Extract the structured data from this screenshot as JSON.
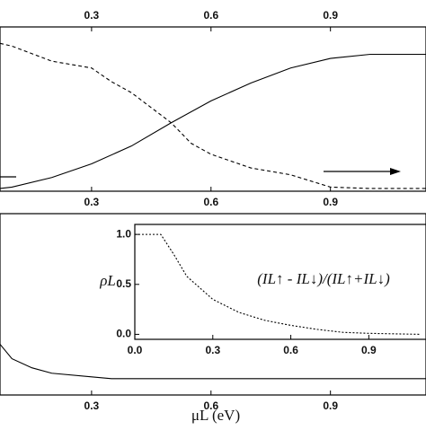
{
  "chart_data": [
    {
      "type": "line",
      "xlim": [
        0.07,
        1.14
      ],
      "xticks": [
        0.3,
        0.6,
        0.9
      ],
      "ylim": [
        0,
        1.2
      ],
      "ticks_top": true,
      "series": [
        {
          "color": "#000000",
          "style": "solid",
          "x": [
            0.07,
            0.1,
            0.2,
            0.3,
            0.4,
            0.5,
            0.6,
            0.7,
            0.8,
            0.9,
            1.0,
            1.14
          ],
          "values": [
            0.02,
            0.03,
            0.1,
            0.2,
            0.33,
            0.5,
            0.66,
            0.79,
            0.9,
            0.97,
            1.0,
            1.0
          ]
        },
        {
          "color": "#000000",
          "style": "dashed",
          "x": [
            0.07,
            0.1,
            0.2,
            0.3,
            0.35,
            0.4,
            0.5,
            0.55,
            0.6,
            0.7,
            0.8,
            0.9,
            1.0,
            1.14
          ],
          "values": [
            1.08,
            1.06,
            0.95,
            0.9,
            0.8,
            0.72,
            0.5,
            0.35,
            0.27,
            0.17,
            0.12,
            0.03,
            0.02,
            0.02
          ]
        }
      ]
    },
    {
      "type": "line",
      "xlim": [
        0.07,
        1.14
      ],
      "xticks": [
        0.3,
        0.6,
        0.9
      ],
      "ylim": [
        0,
        1
      ],
      "xlabel": "μL (eV)",
      "series": [
        {
          "color": "#000000",
          "style": "solid",
          "x": [
            0.07,
            0.1,
            0.15,
            0.2,
            0.3,
            0.35,
            1.14
          ],
          "values": [
            0.28,
            0.2,
            0.15,
            0.12,
            0.1,
            0.09,
            0.09
          ]
        }
      ]
    },
    {
      "type": "line",
      "xlim": [
        0,
        1.12
      ],
      "xticks": [
        {
          "value": 0,
          "label": "0.0"
        },
        0.3,
        0.6,
        0.9
      ],
      "ylim": [
        -0.05,
        1.1
      ],
      "yticks": [
        {
          "value": 0,
          "label": "0.0"
        },
        0.5,
        {
          "value": 1,
          "label": "1.0"
        }
      ],
      "ylabel": "ρL",
      "annotation": "(IL↑ - IL↓)/(IL↑+IL↓)",
      "series": [
        {
          "color": "#000000",
          "style": "dotted",
          "x": [
            0,
            0.1,
            0.15,
            0.2,
            0.3,
            0.4,
            0.5,
            0.6,
            0.7,
            0.8,
            0.9,
            1.1
          ],
          "values": [
            1,
            1,
            0.8,
            0.58,
            0.35,
            0.22,
            0.14,
            0.09,
            0.05,
            0.02,
            0.01,
            0
          ]
        }
      ]
    }
  ]
}
